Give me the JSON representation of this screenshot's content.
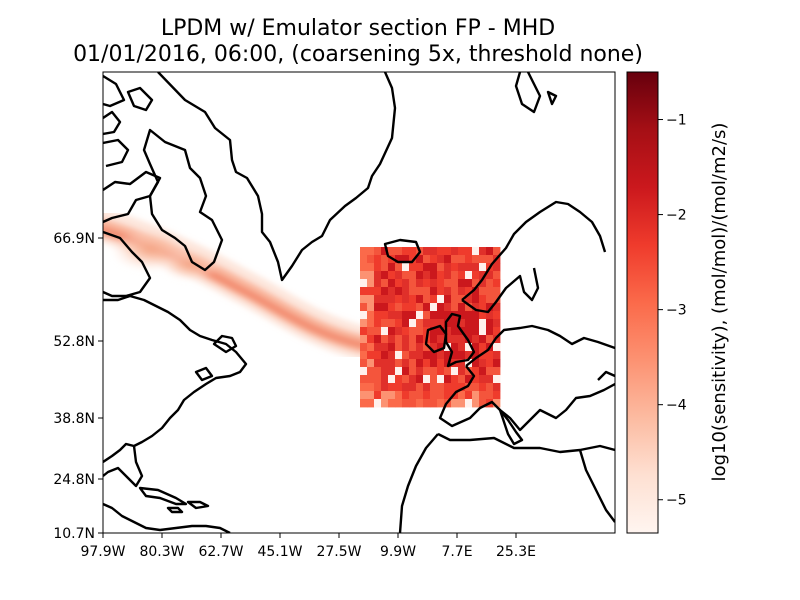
{
  "title": {
    "line1": "LPDM w/ Emulator section FP - MHD",
    "line2": "01/01/2016, 06:00, (coarsening 5x, threshold none)"
  },
  "x_ticks": [
    "97.9W",
    "80.3W",
    "62.7W",
    "45.1W",
    "27.5W",
    "9.9W",
    "7.7E",
    "25.3E"
  ],
  "y_ticks": [
    "66.9N",
    "52.8N",
    "38.8N",
    "24.8N",
    "10.7N"
  ],
  "colorbar": {
    "label": "log10(sensitivity), (mol/mol)/(mol/m2/s)",
    "ticks": [
      "−1",
      "−2",
      "−3",
      "−4",
      "−5"
    ],
    "tick_values": [
      -1,
      -2,
      -3,
      -4,
      -5
    ],
    "range": [
      -5.35,
      -0.5
    ],
    "colormap": "Reds"
  },
  "chart_data": {
    "type": "heatmap",
    "title": "LPDM w/ Emulator section FP - MHD",
    "subtitle": "01/01/2016, 06:00, (coarsening 5x, threshold none)",
    "xlabel": "",
    "ylabel": "",
    "x_tick_labels": [
      "97.9W",
      "80.3W",
      "62.7W",
      "45.1W",
      "27.5W",
      "9.9W",
      "7.7E",
      "25.3E"
    ],
    "y_tick_labels": [
      "66.9N",
      "52.8N",
      "38.8N",
      "24.8N",
      "10.7N"
    ],
    "xlim": [
      -97.9,
      36.0
    ],
    "ylim": [
      10.7,
      80.0
    ],
    "colorbar_range": [
      -5.35,
      -0.5
    ],
    "colors": {
      "high": "#67000d",
      "low": "#fff5f0",
      "coast": "#000000"
    },
    "emulator_region": {
      "lon": [
        -27.5,
        10.0
      ],
      "lat": [
        40.0,
        68.0
      ]
    }
  }
}
